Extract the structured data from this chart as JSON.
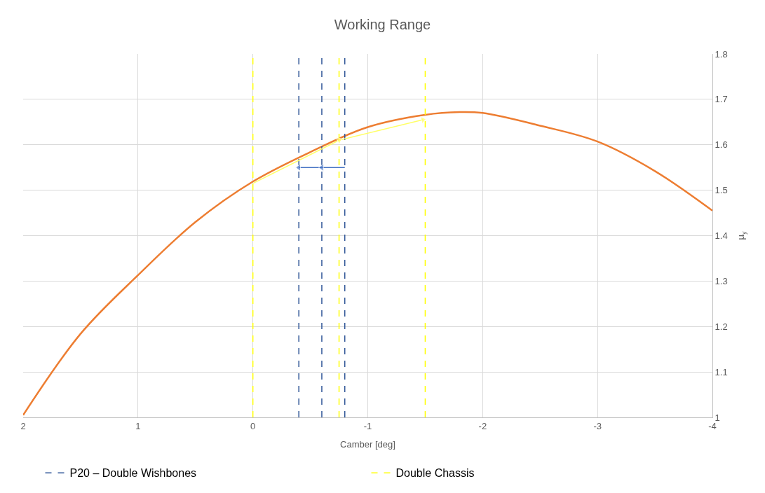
{
  "chart_data": {
    "type": "line",
    "title": "Working Range",
    "xlabel": "Camber [deg]",
    "ylabel": "μ$_{y}$",
    "xlim": [
      2,
      -4
    ],
    "xticks": [
      2,
      1,
      0,
      -1,
      -2,
      -3,
      -4
    ],
    "ylim": [
      1,
      1.8
    ],
    "yticks": [
      1,
      1.1,
      1.2,
      1.3,
      1.4,
      1.5,
      1.6,
      1.7,
      1.8
    ],
    "grid": true,
    "legend": "bottom",
    "marker": "none",
    "line_style": "solid",
    "series": [
      {
        "color": "#ed7d31",
        "x": [
          2,
          1.5,
          1,
          0.5,
          0,
          -0.5,
          -1,
          -1.5,
          -1.8,
          -2,
          -2.5,
          -3,
          -3.5,
          -4
        ],
        "values": [
          1.005,
          1.184,
          1.313,
          1.43,
          1.519,
          1.584,
          1.639,
          1.666,
          1.672,
          1.67,
          1.642,
          1.607,
          1.542,
          1.455
        ]
      },
      {
        "name": "P20 – Double Wishbones",
        "color": "#2f5597",
        "line_style": "dashed",
        "x": [
          -0.4,
          -0.4,
          null,
          -0.6,
          -0.6,
          null,
          -0.8,
          -0.8
        ],
        "values": [
          1,
          1.8,
          null,
          1,
          1.8,
          null,
          1,
          1.8
        ]
      },
      {
        "name": "Double Chassis",
        "color": "#ffff00",
        "line_style": "dashed",
        "x": [
          0,
          0,
          null,
          -0.75,
          -0.75,
          null,
          -1.5,
          -1.5
        ],
        "values": [
          1,
          1.8,
          null,
          1,
          1.8,
          null,
          1,
          1.8
        ]
      },
      {
        "color": "#4472c4",
        "marker": "triangle",
        "x": [
          -0.8,
          -0.6,
          -0.4
        ],
        "values": [
          1.55,
          1.55,
          1.55
        ]
      },
      {
        "color": "#ffff66",
        "marker": "triangle",
        "x": [
          0,
          -0.75,
          -1.48
        ],
        "values": [
          1.515,
          1.61,
          1.655
        ]
      }
    ]
  }
}
